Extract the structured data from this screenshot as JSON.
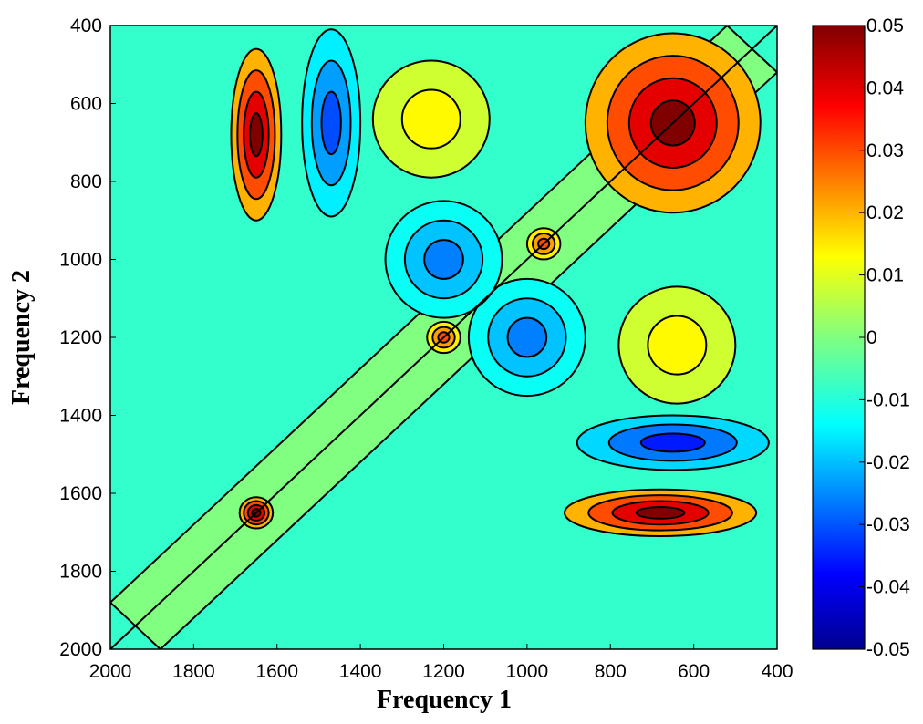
{
  "chart_data": {
    "type": "heatmap",
    "subtype": "contour-filled",
    "title": "",
    "xlabel": "Frequency 1",
    "ylabel": "Frequency 2",
    "xlim": [
      2000,
      400
    ],
    "ylim": [
      400,
      2000
    ],
    "x_ticks": [
      "2000",
      "1800",
      "1600",
      "1400",
      "1200",
      "1000",
      "800",
      "600",
      "400"
    ],
    "y_ticks": [
      "400",
      "600",
      "800",
      "1000",
      "1200",
      "1400",
      "1600",
      "1800",
      "2000"
    ],
    "colorbar": {
      "range": [
        -0.05,
        0.05
      ],
      "ticks": [
        "0.05",
        "0.04",
        "0.03",
        "0.02",
        "0.01",
        "0",
        "-0.01",
        "-0.02",
        "-0.03",
        "-0.04",
        "-0.05"
      ],
      "colormap": "jet"
    },
    "features": [
      {
        "x": 650,
        "y": 650,
        "value": 0.05
      },
      {
        "x": 1650,
        "y": 1650,
        "value": 0.05
      },
      {
        "x": 1650,
        "y": 680,
        "value": 0.05
      },
      {
        "x": 680,
        "y": 1650,
        "value": 0.05
      },
      {
        "x": 1230,
        "y": 640,
        "value": 0.013
      },
      {
        "x": 640,
        "y": 1220,
        "value": 0.013
      },
      {
        "x": 1470,
        "y": 650,
        "value": -0.03
      },
      {
        "x": 650,
        "y": 1470,
        "value": -0.035
      },
      {
        "x": 1000,
        "y": 1200,
        "value": -0.025
      },
      {
        "x": 1200,
        "y": 1000,
        "value": -0.025
      },
      {
        "x": 960,
        "y": 960,
        "value": 0.03
      },
      {
        "x": 1200,
        "y": 1200,
        "value": 0.03
      }
    ]
  }
}
